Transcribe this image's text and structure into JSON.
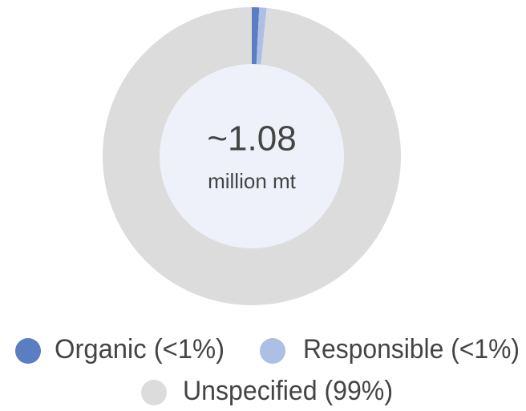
{
  "chart_data": {
    "type": "donut",
    "center_value": "~1.08",
    "center_label": "million mt",
    "categories": [
      "Organic (<1%)",
      "Responsible (<1%)",
      "Unspecified (99%)"
    ],
    "values": [
      0.8,
      0.8,
      99
    ],
    "colors": [
      "#5b7dc2",
      "#adbfe4",
      "#dcdcdc"
    ]
  }
}
